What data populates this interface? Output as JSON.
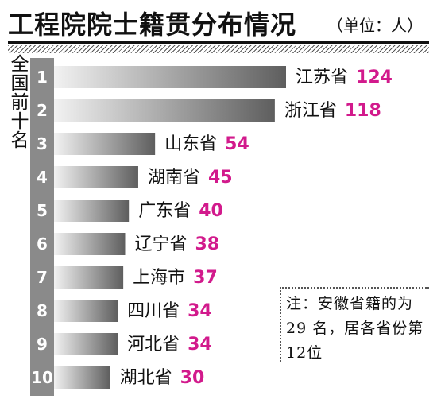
{
  "title": "工程院院士籍贯分布情况",
  "unit": "（单位：人）",
  "side_label": "全国前十名",
  "note": "注：安徽省籍的为 29 名，居各省份第12位",
  "colors": {
    "value_text": "#d21a8c",
    "rank_strip": "#8a8a8a",
    "bar_dark": "#5e5e5e",
    "bar_light": "#f2f2f2"
  },
  "chart_data": {
    "type": "bar",
    "orientation": "horizontal",
    "title": "工程院院士籍贯分布情况",
    "unit": "人",
    "ranks": [
      "1",
      "2",
      "3",
      "4",
      "5",
      "6",
      "7",
      "8",
      "9",
      "10"
    ],
    "categories": [
      "江苏省",
      "浙江省",
      "山东省",
      "湖南省",
      "广东省",
      "辽宁省",
      "上海市",
      "四川省",
      "河北省",
      "湖北省"
    ],
    "values": [
      124,
      118,
      54,
      45,
      40,
      38,
      37,
      34,
      34,
      30
    ],
    "value_labels": [
      "124",
      "118",
      "54",
      "45",
      "40",
      "38",
      "37",
      "34",
      "34",
      "30"
    ],
    "xlim": [
      0,
      124
    ],
    "grid": false,
    "legend": "none"
  }
}
